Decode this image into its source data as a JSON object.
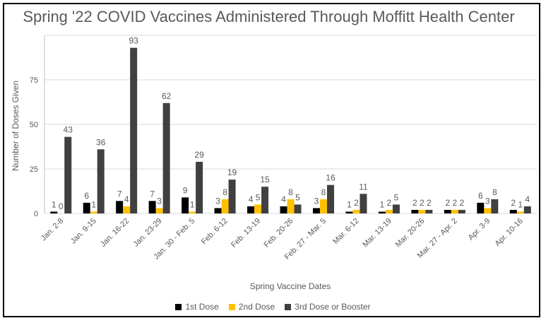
{
  "chart_data": {
    "type": "bar",
    "title": "Spring '22 COVID Vaccines Administered Through Moffitt Health Center",
    "xlabel": "Spring Vaccine Dates",
    "ylabel": "Number of Doses Given",
    "ylim": [
      0,
      100
    ],
    "yticks": [
      0,
      25,
      50,
      75
    ],
    "grid": true,
    "legend_position": "bottom",
    "categories": [
      "Jan. 2-8",
      "Jan. 9-15",
      "Jan. 16-22",
      "Jan. 23-29",
      "Jan. 30 - Feb. 5",
      "Feb. 6-12",
      "Feb. 13-19",
      "Feb. 20-26",
      "Feb. 27 - Mar. 5",
      "Mar. 6-12",
      "Mar. 13-19",
      "Mar. 20-26",
      "Mar. 27 - Apr. 2",
      "Apr. 3-9",
      "Apr. 10-16"
    ],
    "series": [
      {
        "name": "1st Dose",
        "color": "#000000",
        "values": [
          1,
          6,
          7,
          7,
          9,
          3,
          4,
          4,
          3,
          1,
          1,
          2,
          2,
          6,
          2
        ]
      },
      {
        "name": "2nd Dose",
        "color": "#FFC000",
        "values": [
          0,
          1,
          4,
          3,
          1,
          8,
          5,
          8,
          8,
          2,
          2,
          2,
          2,
          3,
          1
        ]
      },
      {
        "name": "3rd Dose or Booster",
        "color": "#404040",
        "values": [
          43,
          36,
          93,
          62,
          29,
          19,
          15,
          5,
          16,
          11,
          5,
          2,
          2,
          8,
          4
        ]
      }
    ]
  }
}
